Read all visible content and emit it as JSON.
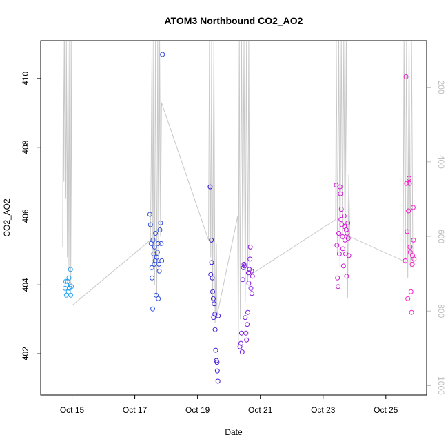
{
  "chart_data": {
    "type": "scatter",
    "title": "ATOM3 Northbound CO2_AO2",
    "xlabel": "Date",
    "ylabel": "CO2_AO2",
    "x_ticks": [
      "Oct 15",
      "Oct 17",
      "Oct 19",
      "Oct 21",
      "Oct 23",
      "Oct 25"
    ],
    "x_tick_days": [
      15,
      17,
      19,
      21,
      23,
      25
    ],
    "xlim_days": [
      14.0,
      26.3
    ],
    "ylim": [
      400.8,
      411.1
    ],
    "y_ticks": [
      402,
      404,
      406,
      408,
      410
    ],
    "y2_label": "",
    "y2_ticks": [
      200,
      400,
      600,
      800,
      1000
    ],
    "y2_lim": [
      1025,
      75
    ],
    "grid": false,
    "legend": "none",
    "colors": {
      "points_start": "#22a7f0",
      "points_mid": "#3a1ad8",
      "points_late": "#9a1ae0",
      "points_end": "#ff1ac8",
      "line": "#c8c8c8"
    },
    "series": [
      {
        "kind": "points",
        "points": [
          [
            14.78,
            403.9
          ],
          [
            14.8,
            404.1
          ],
          [
            14.82,
            403.7
          ],
          [
            14.84,
            404.0
          ],
          [
            14.86,
            404.1
          ],
          [
            14.88,
            403.8
          ],
          [
            14.9,
            404.2
          ],
          [
            14.92,
            403.9
          ],
          [
            14.94,
            404.0
          ],
          [
            14.95,
            404.45
          ],
          [
            14.96,
            403.7
          ],
          [
            14.98,
            403.95
          ],
          [
            17.48,
            406.05
          ],
          [
            17.5,
            405.75
          ],
          [
            17.52,
            405.2
          ],
          [
            17.54,
            404.5
          ],
          [
            17.55,
            404.2
          ],
          [
            17.57,
            403.3
          ],
          [
            17.58,
            405.3
          ],
          [
            17.6,
            404.9
          ],
          [
            17.62,
            404.6
          ],
          [
            17.63,
            405.1
          ],
          [
            17.65,
            404.7
          ],
          [
            17.66,
            405.5
          ],
          [
            17.68,
            403.7
          ],
          [
            17.7,
            404.8
          ],
          [
            17.72,
            404.95
          ],
          [
            17.74,
            405.2
          ],
          [
            17.75,
            403.6
          ],
          [
            17.77,
            404.6
          ],
          [
            17.78,
            404.4
          ],
          [
            17.8,
            405.6
          ],
          [
            17.82,
            405.8
          ],
          [
            17.84,
            405.2
          ],
          [
            17.86,
            404.7
          ],
          [
            17.88,
            410.7
          ],
          [
            19.4,
            406.85
          ],
          [
            19.42,
            404.3
          ],
          [
            19.44,
            405.3
          ],
          [
            19.45,
            404.65
          ],
          [
            19.47,
            404.2
          ],
          [
            19.48,
            403.8
          ],
          [
            19.5,
            403.6
          ],
          [
            19.51,
            403.05
          ],
          [
            19.53,
            403.45
          ],
          [
            19.55,
            403.15
          ],
          [
            19.56,
            402.7
          ],
          [
            19.58,
            402.1
          ],
          [
            19.6,
            401.8
          ],
          [
            19.62,
            401.75
          ],
          [
            19.63,
            401.5
          ],
          [
            19.65,
            401.2
          ],
          [
            19.66,
            403.1
          ],
          [
            20.35,
            402.2
          ],
          [
            20.38,
            402.3
          ],
          [
            20.4,
            402.6
          ],
          [
            20.42,
            402.05
          ],
          [
            20.44,
            404.15
          ],
          [
            20.46,
            404.5
          ],
          [
            20.48,
            404.6
          ],
          [
            20.5,
            404.55
          ],
          [
            20.52,
            403.05
          ],
          [
            20.54,
            402.6
          ],
          [
            20.56,
            402.4
          ],
          [
            20.58,
            402.85
          ],
          [
            20.6,
            403.2
          ],
          [
            20.62,
            404.35
          ],
          [
            20.63,
            404.05
          ],
          [
            20.65,
            404.45
          ],
          [
            20.67,
            404.75
          ],
          [
            20.68,
            405.1
          ],
          [
            20.7,
            403.9
          ],
          [
            20.72,
            404.4
          ],
          [
            20.73,
            403.75
          ],
          [
            20.75,
            404.25
          ],
          [
            23.42,
            406.9
          ],
          [
            23.44,
            405.15
          ],
          [
            23.46,
            404.2
          ],
          [
            23.48,
            403.95
          ],
          [
            23.5,
            405.5
          ],
          [
            23.52,
            404.9
          ],
          [
            23.54,
            406.85
          ],
          [
            23.55,
            406.65
          ],
          [
            23.57,
            405.9
          ],
          [
            23.58,
            406.2
          ],
          [
            23.6,
            405.75
          ],
          [
            23.62,
            405.4
          ],
          [
            23.63,
            405.05
          ],
          [
            23.65,
            404.55
          ],
          [
            23.67,
            406.0
          ],
          [
            23.68,
            405.7
          ],
          [
            23.7,
            405.3
          ],
          [
            23.72,
            404.9
          ],
          [
            23.74,
            405.6
          ],
          [
            23.75,
            404.25
          ],
          [
            23.77,
            405.5
          ],
          [
            23.79,
            405.8
          ],
          [
            23.8,
            405.35
          ],
          [
            23.82,
            404.85
          ],
          [
            25.62,
            404.7
          ],
          [
            25.64,
            410.05
          ],
          [
            25.66,
            406.95
          ],
          [
            25.68,
            405.55
          ],
          [
            25.7,
            403.6
          ],
          [
            25.72,
            406.15
          ],
          [
            25.74,
            407.1
          ],
          [
            25.75,
            406.95
          ],
          [
            25.77,
            405.1
          ],
          [
            25.78,
            404.95
          ],
          [
            25.8,
            403.8
          ],
          [
            25.82,
            403.2
          ],
          [
            25.84,
            404.6
          ],
          [
            25.85,
            404.85
          ],
          [
            25.87,
            406.25
          ],
          [
            25.88,
            405.3
          ],
          [
            25.9,
            404.75
          ]
        ]
      },
      {
        "kind": "line",
        "points": [
          [
            14.7,
            405.1
          ],
          [
            14.72,
            411.1
          ],
          [
            14.74,
            407.0
          ],
          [
            14.76,
            411.1
          ],
          [
            14.8,
            406.5
          ],
          [
            14.82,
            411.1
          ],
          [
            14.85,
            404.8
          ],
          [
            14.87,
            411.1
          ],
          [
            14.9,
            404.5
          ],
          [
            14.92,
            411.1
          ],
          [
            14.95,
            404.0
          ],
          [
            14.97,
            411.1
          ],
          [
            15.0,
            403.4
          ],
          [
            17.5,
            405.3
          ],
          [
            17.52,
            407.5
          ],
          [
            17.55,
            411.1
          ],
          [
            17.58,
            404.6
          ],
          [
            17.6,
            411.1
          ],
          [
            17.63,
            404.0
          ],
          [
            17.66,
            411.1
          ],
          [
            17.7,
            403.7
          ],
          [
            17.73,
            411.1
          ],
          [
            17.76,
            404.3
          ],
          [
            17.79,
            411.1
          ],
          [
            17.82,
            405.4
          ],
          [
            17.85,
            409.3
          ],
          [
            19.35,
            405.3
          ],
          [
            19.38,
            411.1
          ],
          [
            19.42,
            404.8
          ],
          [
            19.45,
            411.1
          ],
          [
            19.48,
            403.5
          ],
          [
            19.52,
            411.1
          ],
          [
            19.56,
            402.9
          ],
          [
            19.6,
            405.2
          ],
          [
            19.62,
            403.1
          ],
          [
            20.28,
            406.0
          ],
          [
            20.3,
            402.2
          ],
          [
            20.33,
            411.1
          ],
          [
            20.36,
            403.0
          ],
          [
            20.4,
            411.1
          ],
          [
            20.44,
            404.4
          ],
          [
            20.48,
            411.1
          ],
          [
            20.52,
            403.5
          ],
          [
            20.56,
            411.1
          ],
          [
            20.6,
            404.1
          ],
          [
            20.63,
            411.1
          ],
          [
            20.66,
            404.6
          ],
          [
            20.7,
            404.3
          ],
          [
            23.4,
            405.9
          ],
          [
            23.42,
            411.1
          ],
          [
            23.46,
            404.9
          ],
          [
            23.5,
            411.1
          ],
          [
            23.54,
            404.5
          ],
          [
            23.58,
            411.1
          ],
          [
            23.62,
            405.3
          ],
          [
            23.66,
            411.1
          ],
          [
            23.7,
            405.0
          ],
          [
            23.74,
            411.1
          ],
          [
            23.78,
            403.6
          ],
          [
            23.82,
            407.2
          ],
          [
            23.85,
            405.4
          ],
          [
            25.55,
            404.7
          ],
          [
            25.58,
            411.1
          ],
          [
            25.62,
            404.6
          ],
          [
            25.66,
            411.1
          ],
          [
            25.7,
            404.2
          ],
          [
            25.74,
            411.1
          ],
          [
            25.78,
            404.5
          ],
          [
            25.82,
            411.1
          ],
          [
            25.86,
            404.8
          ],
          [
            25.9,
            404.4
          ]
        ]
      }
    ]
  }
}
